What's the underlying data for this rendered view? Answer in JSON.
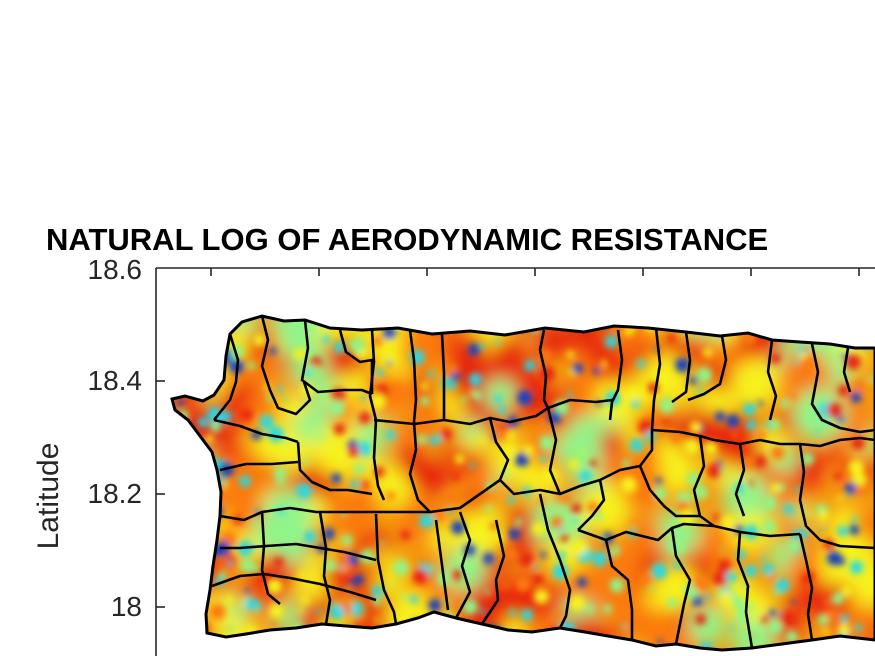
{
  "chart_data": {
    "type": "heatmap",
    "title": "NATURAL LOG OF AERODYNAMIC RESISTANCE",
    "ylabel": "Latitude",
    "xlabel": "",
    "yticks": [
      "18.6",
      "18.4",
      "18.2",
      "18"
    ],
    "ylim": [
      17.9,
      18.6
    ],
    "colormap": "jet",
    "region": "Puerto Rico municipalities",
    "grid": false
  },
  "colors": {
    "red": "#e8280e",
    "orange": "#fb7a10",
    "yellow": "#f7f21a",
    "light_green": "#8ff58a",
    "cyan": "#27d9e6",
    "blue": "#1341c2",
    "border": "#000000",
    "axis": "#262626"
  }
}
